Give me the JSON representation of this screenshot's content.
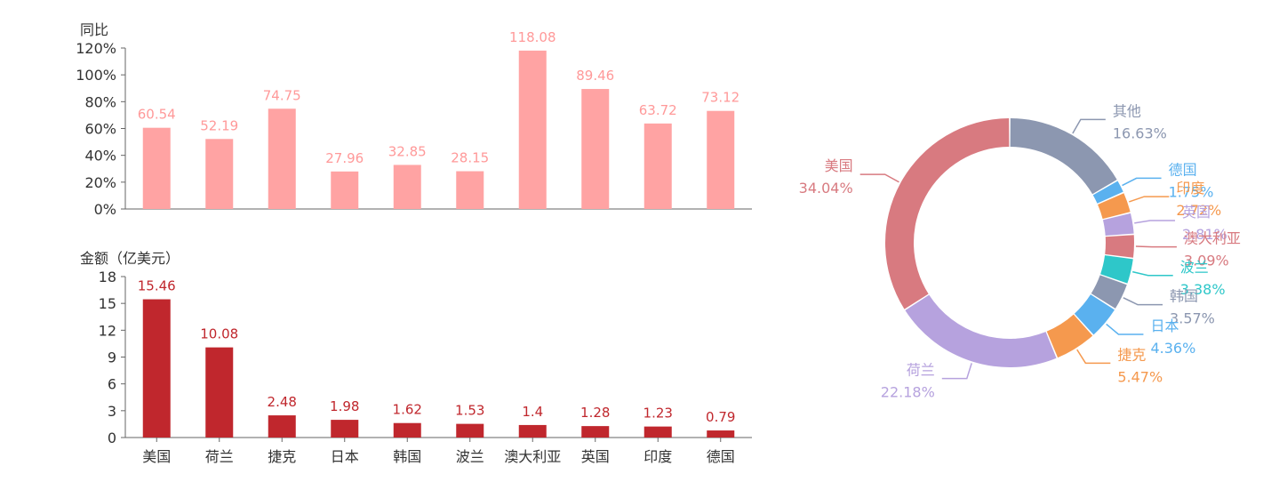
{
  "chart_data": [
    {
      "type": "bar",
      "ylabel": "同比",
      "categories": [
        "美国",
        "荷兰",
        "捷克",
        "日本",
        "韩国",
        "波兰",
        "澳大利亚",
        "英国",
        "印度",
        "德国"
      ],
      "values": [
        60.54,
        52.19,
        74.75,
        27.96,
        32.85,
        28.15,
        118.08,
        89.46,
        63.72,
        73.12
      ],
      "ylim": [
        0,
        120
      ],
      "yticks": [
        "0%",
        "20%",
        "40%",
        "60%",
        "80%",
        "100%",
        "120%"
      ],
      "data_labels": [
        "60.54",
        "52.19",
        "74.75",
        "27.96",
        "32.85",
        "28.15",
        "118.08",
        "89.46",
        "63.72",
        "73.12"
      ],
      "color": "#ffa3a3",
      "label_color": "#ff9999"
    },
    {
      "type": "bar",
      "ylabel": "金额（亿美元）",
      "categories": [
        "美国",
        "荷兰",
        "捷克",
        "日本",
        "韩国",
        "波兰",
        "澳大利亚",
        "英国",
        "印度",
        "德国"
      ],
      "values": [
        15.46,
        10.08,
        2.48,
        1.98,
        1.62,
        1.53,
        1.4,
        1.28,
        1.23,
        0.79
      ],
      "ylim": [
        0,
        18
      ],
      "yticks": [
        "0",
        "3",
        "6",
        "9",
        "12",
        "15",
        "18"
      ],
      "data_labels": [
        "15.46",
        "10.08",
        "2.48",
        "1.98",
        "1.62",
        "1.53",
        "1.4",
        "1.28",
        "1.23",
        "0.79"
      ],
      "color": "#c0272d",
      "label_color": "#c0272d"
    },
    {
      "type": "pie",
      "donut": true,
      "slices": [
        {
          "name": "其他",
          "value": 16.63,
          "label": "16.63%",
          "color": "#8c97b0"
        },
        {
          "name": "德国",
          "value": 1.75,
          "label": "1.75%",
          "color": "#5ab1ef"
        },
        {
          "name": "印度",
          "value": 2.72,
          "label": "2.72%",
          "color": "#f5994e"
        },
        {
          "name": "英国",
          "value": 2.81,
          "label": "2.81%",
          "color": "#b6a2de"
        },
        {
          "name": "澳大利亚",
          "value": 3.09,
          "label": "3.09%",
          "color": "#d87a80"
        },
        {
          "name": "波兰",
          "value": 3.38,
          "label": "3.38%",
          "color": "#2ec7c9"
        },
        {
          "name": "韩国",
          "value": 3.57,
          "label": "3.57%",
          "color": "#8c97b0"
        },
        {
          "name": "日本",
          "value": 4.36,
          "label": "4.36%",
          "color": "#5ab1ef"
        },
        {
          "name": "捷克",
          "value": 5.47,
          "label": "5.47%",
          "color": "#f5994e"
        },
        {
          "name": "荷兰",
          "value": 22.18,
          "label": "22.18%",
          "color": "#b6a2de"
        },
        {
          "name": "美国",
          "value": 34.04,
          "label": "34.04%",
          "color": "#d87a80"
        }
      ]
    }
  ]
}
